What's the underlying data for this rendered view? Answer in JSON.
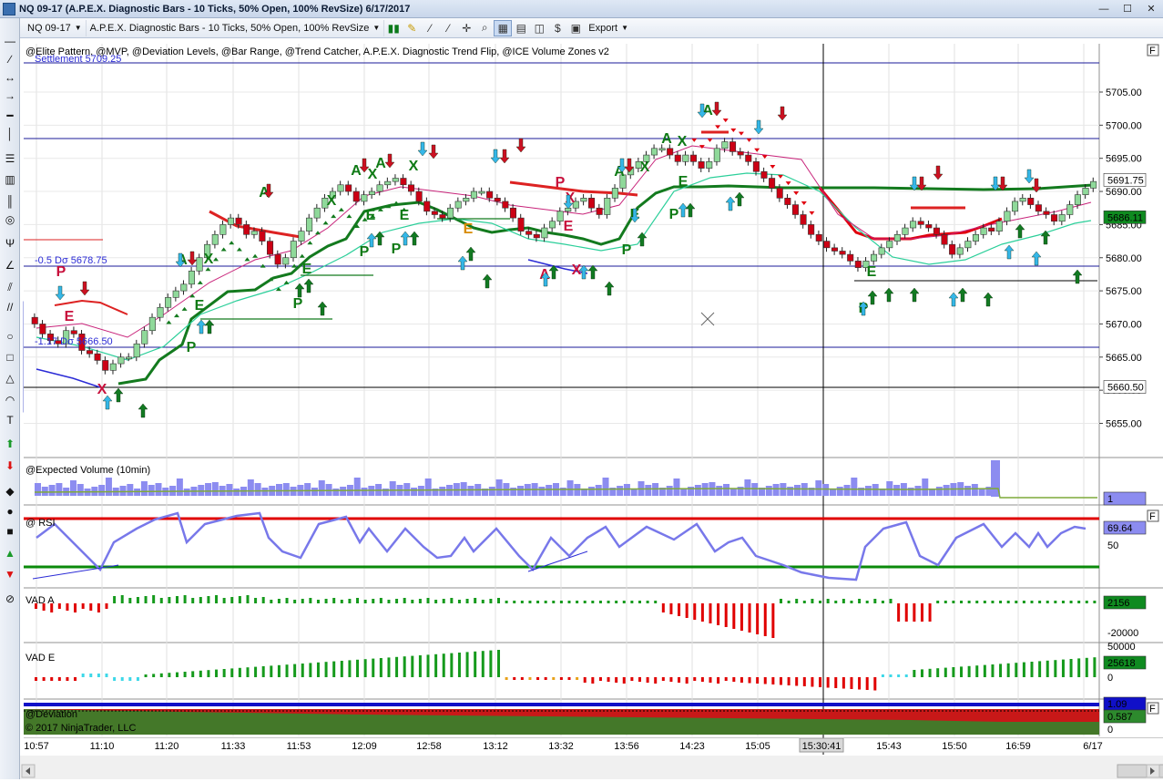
{
  "window": {
    "title": "NQ 09-17 (A.P.E.X. Diagnostic Bars - 10 Ticks, 50% Open, 100% RevSize)  6/17/2017",
    "minimize_glyph": "—",
    "maximize_glyph": "☐",
    "close_glyph": "✕"
  },
  "toolbar": {
    "instrument": "NQ 09-17",
    "bar_type": "A.P.E.X. Diagnostic Bars - 10 Ticks, 50% Open, 100% RevSize",
    "export_label": "Export",
    "icons": [
      "candlestick-icon",
      "pencil-icon",
      "wand-icon",
      "wand2-icon",
      "crosshair-icon",
      "zoom-icon",
      "chart-window-icon",
      "chart-duplicate-icon",
      "chart-style-icon",
      "instrument-icon",
      "properties-icon"
    ]
  },
  "left_tools": [
    "line-icon",
    "ray-icon",
    "extended-line-icon",
    "arrow-line-icon",
    "horizontal-line-icon",
    "vertical-line-icon",
    "fib-retracement-icon",
    "fib-extension-icon",
    "fib-timezone-icon",
    "fib-circle-icon",
    "andrews-pitchfork-icon",
    "gann-fan-icon",
    "regression-channel-icon",
    "trend-channel-icon",
    "ellipse-icon",
    "rectangle-icon",
    "triangle-icon",
    "arc-icon",
    "text-icon",
    "arrow-up-icon",
    "arrow-down-icon",
    "diamond-icon",
    "dot-icon",
    "square-icon",
    "triangle-up-icon",
    "triangle-down-icon",
    "remove-drawings-icon"
  ],
  "panels": {
    "price": {
      "indicators_label": "@Elite Pattern, @MVP, @Deviation Levels, @Bar Range, @Trend Catcher, A.P.E.X. Diagnostic Trend Flip, @ICE Volume Zones v2",
      "settlement_label": "Settlement 5709.25",
      "dev_minus_label": "-0.5 Dσ 5678.75",
      "dev_lower_label": "-1.17 Dσ 5666.50",
      "axis_ticks": [
        "5705.00",
        "5700.00",
        "5695.00",
        "5690.00",
        "5685.00",
        "5680.00",
        "5675.00",
        "5670.00",
        "5665.00",
        "5660.00",
        "5655.00"
      ],
      "last_price": "5691.75",
      "green_line_price": "5686.11",
      "black_line_price": "5660.50",
      "flag": "F"
    },
    "volume": {
      "label": "@Expected Volume (10min)",
      "value_badge": "1"
    },
    "rsi": {
      "label": "@ RSI",
      "value_badge": "69.64",
      "tick": "50",
      "flag": "F"
    },
    "vad_a": {
      "label": "VAD A",
      "value_badge": "2156",
      "tick_neg": "-20000"
    },
    "vad_e": {
      "label": "VAD E",
      "value_badge": "25618",
      "tick_top": "50000",
      "tick_zero": "0"
    },
    "deviation": {
      "label": "@Deviation",
      "copyright": "© 2017 NinjaTrader, LLC",
      "value_badge_1": "1.09",
      "value_badge_2": "0.587",
      "tick_zero": "0",
      "flag": "F"
    }
  },
  "time_axis": [
    "10:57",
    "11:10",
    "11:20",
    "11:33",
    "11:53",
    "12:09",
    "12:58",
    "13:12",
    "13:32",
    "13:56",
    "14:23",
    "15:05",
    "15:30:41",
    "15:43",
    "15:50",
    "16:59",
    "6/17"
  ],
  "signals": [
    "P",
    "E",
    "A",
    "X",
    "E",
    "P",
    "X",
    "A",
    "X",
    "E",
    "P",
    "X",
    "E",
    "X",
    "A",
    "X",
    "E",
    "P",
    "A",
    "X",
    "P",
    "E",
    "X",
    "A",
    "X",
    "E",
    "P",
    "A",
    "X",
    "E",
    "P"
  ],
  "colors": {
    "up_candle": "#8fd99a",
    "down_candle": "#cc0014",
    "trend_green": "#137a1e",
    "trend_red": "#e0000e",
    "zone_blue": "#b8bff7",
    "signal_green": "#0f7a15",
    "signal_red": "#c8103c"
  }
}
